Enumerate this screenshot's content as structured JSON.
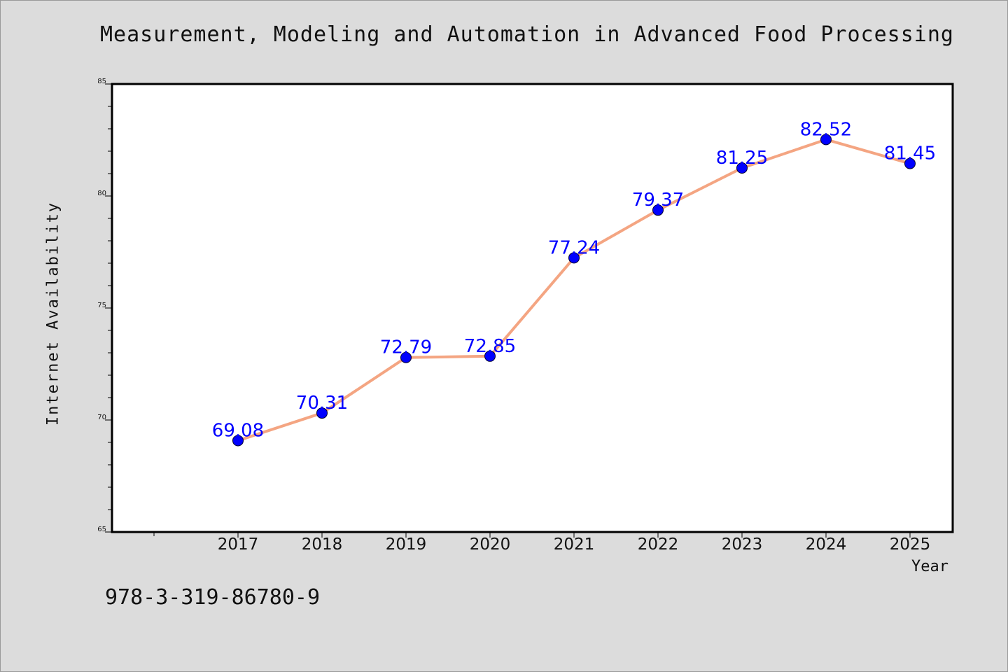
{
  "chart_data": {
    "type": "line",
    "title": "Measurement, Modeling and Automation in Advanced Food Processing",
    "xlabel": "Year",
    "ylabel": "Internet Availability",
    "categories": [
      "2017",
      "2018",
      "2019",
      "2020",
      "2021",
      "2022",
      "2023",
      "2024",
      "2025"
    ],
    "values": [
      69.08,
      70.31,
      72.79,
      72.85,
      77.24,
      79.37,
      81.25,
      82.52,
      81.45
    ],
    "value_labels": [
      "69.08",
      "70.31",
      "72.79",
      "72.85",
      "77.24",
      "79.37",
      "81.25",
      "82.52",
      "81.45"
    ],
    "ylim": [
      65,
      85
    ],
    "yticks": [
      "65",
      "70",
      "75",
      "80",
      "85"
    ],
    "grid": false,
    "legend": "none",
    "line_color": "#f4a582",
    "marker_color": "#0000ff",
    "label_color": "#0000ff"
  },
  "footer": {
    "isbn": "978-3-319-86780-9"
  }
}
